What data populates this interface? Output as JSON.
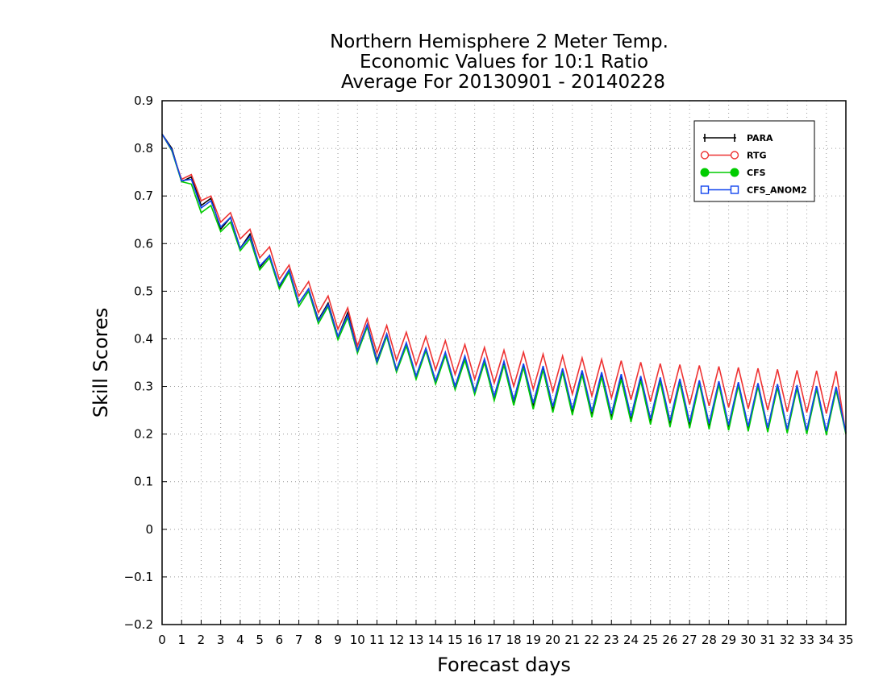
{
  "chart_data": {
    "type": "line",
    "title_lines": [
      "Northern Hemisphere 2 Meter Temp.",
      "Economic Values for 10:1 Ratio",
      "Average For 20130901 - 20140228"
    ],
    "xlabel": "Forecast days",
    "ylabel": "Skill Scores",
    "xlim": [
      0,
      35
    ],
    "ylim": [
      -0.2,
      0.9
    ],
    "x_ticks": [
      0,
      1,
      2,
      3,
      4,
      5,
      6,
      7,
      8,
      9,
      10,
      11,
      12,
      13,
      14,
      15,
      16,
      17,
      18,
      19,
      20,
      21,
      22,
      23,
      24,
      25,
      26,
      27,
      28,
      29,
      30,
      31,
      32,
      33,
      34,
      35
    ],
    "y_ticks": [
      -0.2,
      -0.1,
      0,
      0.1,
      0.2,
      0.3,
      0.4,
      0.5,
      0.6,
      0.7,
      0.8,
      0.9
    ],
    "y_tick_labels": [
      "−0.2",
      "−0.1",
      "0",
      "0.1",
      "0.2",
      "0.3",
      "0.4",
      "0.5",
      "0.6",
      "0.7",
      "0.8",
      "0.9"
    ],
    "grid": true,
    "legend_position": "top-right",
    "x": [
      0,
      0.5,
      1,
      1.5,
      2,
      2.5,
      3,
      3.5,
      4,
      4.5,
      5,
      5.5,
      6,
      6.5,
      7,
      7.5,
      8,
      8.5,
      9,
      9.5,
      10,
      10.5,
      11,
      11.5,
      12,
      12.5,
      13,
      13.5,
      14,
      14.5,
      15,
      15.5,
      16,
      16.5,
      17,
      17.5,
      18,
      18.5,
      19,
      19.5,
      20,
      20.5,
      21,
      21.5,
      22,
      22.5,
      23,
      23.5,
      24,
      24.5,
      25,
      25.5,
      26,
      26.5,
      27,
      27.5,
      28,
      28.5,
      29,
      29.5,
      30,
      30.5,
      31,
      31.5,
      32,
      32.5,
      33,
      33.5,
      34,
      34.5,
      35
    ],
    "series": [
      {
        "name": "PARA",
        "color": "#000000",
        "marker": "plus",
        "values": [
          0.83,
          0.8,
          0.73,
          0.74,
          0.68,
          0.695,
          0.63,
          0.655,
          0.59,
          0.62,
          0.55,
          0.575,
          0.51,
          0.545,
          0.475,
          0.505,
          0.44,
          0.475,
          0.405,
          0.455,
          0.375,
          0.43,
          0.355,
          0.41,
          0.335,
          0.39,
          0.32,
          0.38,
          0.31,
          0.37,
          0.3,
          0.36,
          0.29,
          0.355,
          0.275,
          0.35,
          0.265,
          0.345,
          0.258,
          0.34,
          0.25,
          0.335,
          0.245,
          0.33,
          0.24,
          0.325,
          0.235,
          0.32,
          0.23,
          0.318,
          0.225,
          0.316,
          0.22,
          0.314,
          0.218,
          0.312,
          0.216,
          0.31,
          0.214,
          0.308,
          0.212,
          0.306,
          0.21,
          0.304,
          0.208,
          0.302,
          0.206,
          0.3,
          0.204,
          0.298,
          0.203
        ]
      },
      {
        "name": "RTG",
        "color": "#ee3333",
        "marker": "open-circle",
        "values": [
          0.83,
          0.795,
          0.735,
          0.745,
          0.69,
          0.7,
          0.645,
          0.665,
          0.61,
          0.63,
          0.57,
          0.593,
          0.525,
          0.555,
          0.49,
          0.52,
          0.455,
          0.49,
          0.42,
          0.465,
          0.385,
          0.442,
          0.37,
          0.428,
          0.355,
          0.414,
          0.345,
          0.405,
          0.335,
          0.396,
          0.325,
          0.388,
          0.315,
          0.382,
          0.307,
          0.376,
          0.3,
          0.372,
          0.294,
          0.368,
          0.289,
          0.364,
          0.284,
          0.36,
          0.28,
          0.357,
          0.276,
          0.354,
          0.272,
          0.351,
          0.268,
          0.348,
          0.265,
          0.346,
          0.262,
          0.344,
          0.259,
          0.342,
          0.256,
          0.34,
          0.253,
          0.338,
          0.25,
          0.336,
          0.247,
          0.334,
          0.245,
          0.333,
          0.243,
          0.332,
          0.2
        ]
      },
      {
        "name": "CFS",
        "color": "#00cc00",
        "marker": "filled-circle",
        "values": [
          0.83,
          0.795,
          0.73,
          0.725,
          0.665,
          0.68,
          0.625,
          0.645,
          0.585,
          0.61,
          0.545,
          0.57,
          0.505,
          0.54,
          0.468,
          0.5,
          0.432,
          0.468,
          0.398,
          0.445,
          0.37,
          0.425,
          0.348,
          0.405,
          0.33,
          0.385,
          0.315,
          0.375,
          0.305,
          0.365,
          0.293,
          0.355,
          0.283,
          0.35,
          0.27,
          0.345,
          0.26,
          0.34,
          0.252,
          0.335,
          0.245,
          0.33,
          0.24,
          0.325,
          0.235,
          0.32,
          0.23,
          0.315,
          0.225,
          0.312,
          0.22,
          0.31,
          0.215,
          0.308,
          0.212,
          0.306,
          0.21,
          0.304,
          0.208,
          0.302,
          0.206,
          0.3,
          0.204,
          0.298,
          0.202,
          0.296,
          0.2,
          0.294,
          0.198,
          0.292,
          0.2
        ]
      },
      {
        "name": "CFS_ANOM2",
        "color": "#1144ee",
        "marker": "open-square",
        "values": [
          0.83,
          0.797,
          0.732,
          0.735,
          0.675,
          0.69,
          0.635,
          0.655,
          0.59,
          0.615,
          0.553,
          0.575,
          0.512,
          0.545,
          0.475,
          0.505,
          0.438,
          0.472,
          0.405,
          0.45,
          0.375,
          0.43,
          0.352,
          0.41,
          0.335,
          0.392,
          0.322,
          0.38,
          0.312,
          0.372,
          0.3,
          0.364,
          0.29,
          0.358,
          0.28,
          0.353,
          0.272,
          0.348,
          0.265,
          0.343,
          0.258,
          0.338,
          0.252,
          0.334,
          0.247,
          0.33,
          0.242,
          0.326,
          0.237,
          0.322,
          0.232,
          0.319,
          0.228,
          0.316,
          0.225,
          0.313,
          0.222,
          0.311,
          0.219,
          0.309,
          0.216,
          0.307,
          0.213,
          0.305,
          0.21,
          0.303,
          0.208,
          0.301,
          0.206,
          0.299,
          0.204
        ]
      }
    ]
  }
}
